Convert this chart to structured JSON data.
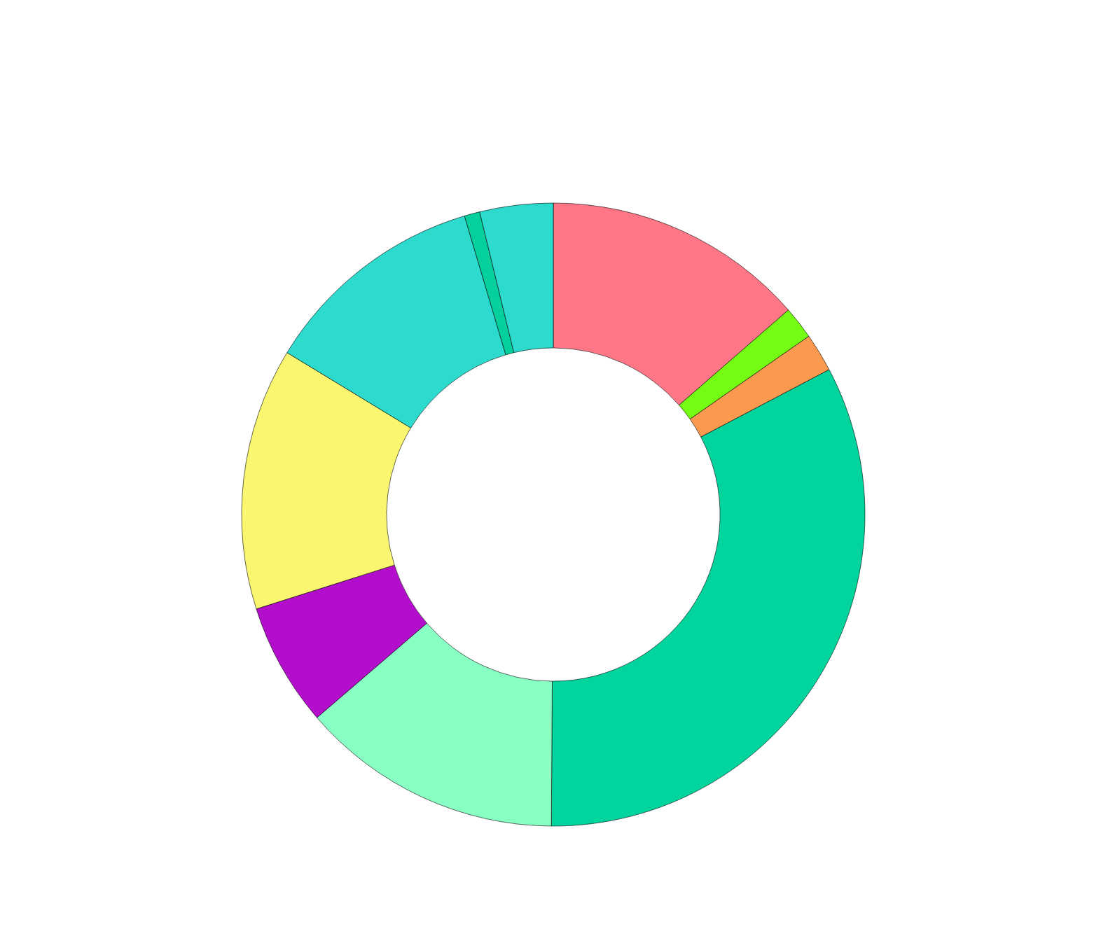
{
  "chart_data": {
    "type": "donut",
    "categories": [
      null,
      null,
      null,
      null,
      null,
      null,
      null,
      null,
      null,
      null
    ],
    "values": [
      13.6,
      1.7,
      2.0,
      32.8,
      13.6,
      6.4,
      13.6,
      11.7,
      0.8,
      3.8
    ],
    "colors": [
      "#ff7787",
      "#74fc12",
      "#fb9a4f",
      "#02d49e",
      "#88ffc3",
      "#b30ecb",
      "#fbf66f",
      "#2cdbcd",
      "#03d09d",
      "#2cdbcd"
    ]
  }
}
